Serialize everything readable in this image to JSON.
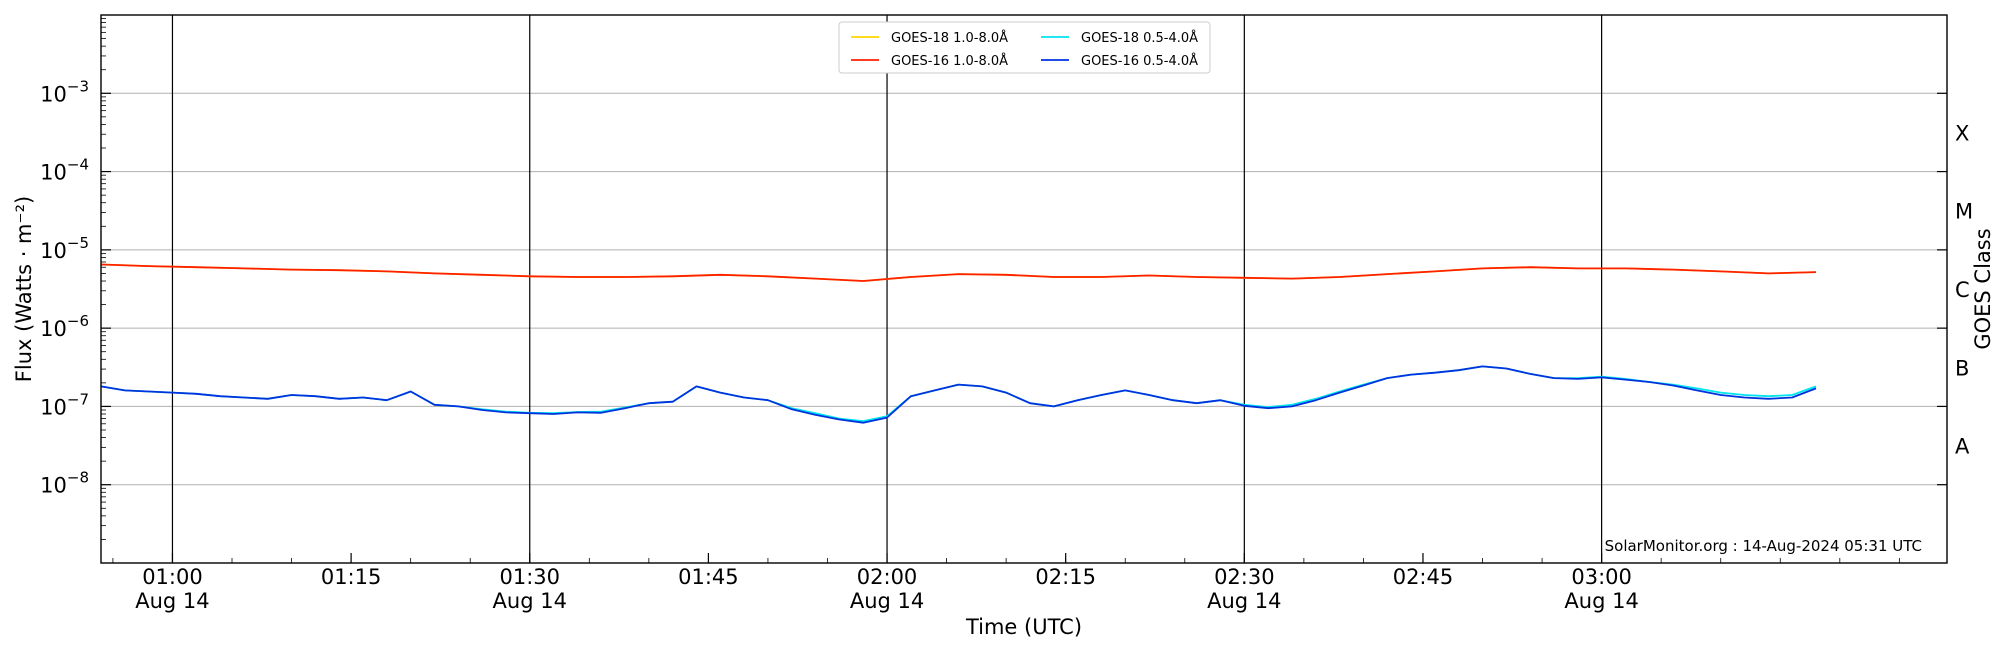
{
  "chart_data": {
    "type": "line",
    "title": "",
    "xlabel": "Time (UTC)",
    "ylabel": "Flux (Watts · m⁻²)",
    "y2label": "GOES Class",
    "yscale": "log",
    "xlim": [
      "00:54",
      "03:29"
    ],
    "ylim": [
      1e-09,
      0.01
    ],
    "grid": "horizontal at decades",
    "legend_position": "top-center",
    "x_ticks": [
      {
        "time": "01:00",
        "label": "01:00",
        "date": "Aug 14",
        "major": true
      },
      {
        "time": "01:15",
        "label": "01:15",
        "date": "",
        "major": false
      },
      {
        "time": "01:30",
        "label": "01:30",
        "date": "Aug 14",
        "major": true
      },
      {
        "time": "01:45",
        "label": "01:45",
        "date": "",
        "major": false
      },
      {
        "time": "02:00",
        "label": "02:00",
        "date": "Aug 14",
        "major": true
      },
      {
        "time": "02:15",
        "label": "02:15",
        "date": "",
        "major": false
      },
      {
        "time": "02:30",
        "label": "02:30",
        "date": "Aug 14",
        "major": true
      },
      {
        "time": "02:45",
        "label": "02:45",
        "date": "",
        "major": false
      },
      {
        "time": "03:00",
        "label": "03:00",
        "date": "Aug 14",
        "major": true
      }
    ],
    "y_ticks": [
      {
        "value": 0.001,
        "base": "10",
        "exp": "−3"
      },
      {
        "value": 0.0001,
        "base": "10",
        "exp": "−4"
      },
      {
        "value": 1e-05,
        "base": "10",
        "exp": "−5"
      },
      {
        "value": 1e-06,
        "base": "10",
        "exp": "−6"
      },
      {
        "value": 1e-07,
        "base": "10",
        "exp": "−7"
      },
      {
        "value": 1e-08,
        "base": "10",
        "exp": "−8"
      }
    ],
    "goes_classes": [
      {
        "label": "X",
        "flux": 0.0001
      },
      {
        "label": "M",
        "flux": 1e-05
      },
      {
        "label": "C",
        "flux": 1e-06
      },
      {
        "label": "B",
        "flux": 1e-07
      },
      {
        "label": "A",
        "flux": 1e-08
      }
    ],
    "series": [
      {
        "name": "GOES-18 1.0-8.0Å",
        "color": "#ffd700",
        "x": [
          "00:54",
          "00:58",
          "01:02",
          "01:06",
          "01:10",
          "01:14",
          "01:18",
          "01:22",
          "01:26",
          "01:30",
          "01:34",
          "01:38",
          "01:42",
          "01:46",
          "01:50",
          "01:54",
          "01:58",
          "02:02",
          "02:06",
          "02:10",
          "02:14",
          "02:18",
          "02:22",
          "02:26",
          "02:30",
          "02:34",
          "02:38",
          "02:42",
          "02:46",
          "02:50",
          "02:54",
          "02:58",
          "03:02",
          "03:06",
          "03:10",
          "03:14",
          "03:18"
        ],
        "y": [
          6.5e-06,
          6.2e-06,
          6e-06,
          5.8e-06,
          5.6e-06,
          5.5e-06,
          5.3e-06,
          5e-06,
          4.8e-06,
          4.6e-06,
          4.5e-06,
          4.5e-06,
          4.6e-06,
          4.8e-06,
          4.6e-06,
          4.3e-06,
          4e-06,
          4.5e-06,
          4.9e-06,
          4.8e-06,
          4.5e-06,
          4.5e-06,
          4.7e-06,
          4.5e-06,
          4.4e-06,
          4.3e-06,
          4.5e-06,
          4.9e-06,
          5.3e-06,
          5.8e-06,
          6e-06,
          5.8e-06,
          5.8e-06,
          5.6e-06,
          5.3e-06,
          5e-06,
          5.2e-06
        ]
      },
      {
        "name": "GOES-18 0.5-4.0Å",
        "color": "#00e5ee",
        "x": [
          "00:54",
          "00:56",
          "00:58",
          "01:00",
          "01:02",
          "01:04",
          "01:06",
          "01:08",
          "01:10",
          "01:12",
          "01:14",
          "01:16",
          "01:18",
          "01:20",
          "01:22",
          "01:24",
          "01:26",
          "01:28",
          "01:30",
          "01:32",
          "01:34",
          "01:36",
          "01:38",
          "01:40",
          "01:42",
          "01:44",
          "01:46",
          "01:48",
          "01:50",
          "01:52",
          "01:54",
          "01:56",
          "01:58",
          "02:00",
          "02:02",
          "02:04",
          "02:06",
          "02:08",
          "02:10",
          "02:12",
          "02:14",
          "02:16",
          "02:18",
          "02:20",
          "02:22",
          "02:24",
          "02:26",
          "02:28",
          "02:30",
          "02:32",
          "02:34",
          "02:36",
          "02:38",
          "02:40",
          "02:42",
          "02:44",
          "02:46",
          "02:48",
          "02:50",
          "02:52",
          "02:54",
          "02:56",
          "02:58",
          "03:00",
          "03:02",
          "03:04",
          "03:06",
          "03:08",
          "03:10",
          "03:12",
          "03:14",
          "03:16",
          "03:18"
        ],
        "y": [
          1.8e-07,
          1.6e-07,
          1.55e-07,
          1.5e-07,
          1.45e-07,
          1.35e-07,
          1.3e-07,
          1.25e-07,
          1.4e-07,
          1.35e-07,
          1.25e-07,
          1.3e-07,
          1.2e-07,
          1.55e-07,
          1.05e-07,
          1e-07,
          9.2e-08,
          8.6e-08,
          8.3e-08,
          8.2e-08,
          8.5e-08,
          8.6e-08,
          9.7e-08,
          1.1e-07,
          1.15e-07,
          1.8e-07,
          1.5e-07,
          1.3e-07,
          1.2e-07,
          9.5e-08,
          8.2e-08,
          7e-08,
          6.5e-08,
          7.5e-08,
          1.35e-07,
          1.6e-07,
          1.9e-07,
          1.8e-07,
          1.5e-07,
          1.1e-07,
          1e-07,
          1.2e-07,
          1.4e-07,
          1.6e-07,
          1.4e-07,
          1.2e-07,
          1.1e-07,
          1.2e-07,
          1.05e-07,
          9.8e-08,
          1.05e-07,
          1.25e-07,
          1.55e-07,
          1.9e-07,
          2.3e-07,
          2.55e-07,
          2.7e-07,
          2.9e-07,
          3.25e-07,
          3.05e-07,
          2.6e-07,
          2.3e-07,
          2.3e-07,
          2.4e-07,
          2.25e-07,
          2.05e-07,
          1.9e-07,
          1.7e-07,
          1.5e-07,
          1.4e-07,
          1.35e-07,
          1.4e-07,
          1.8e-07
        ]
      },
      {
        "name": "GOES-16 1.0-8.0Å",
        "color": "#ff2000",
        "x": [
          "00:54",
          "00:58",
          "01:02",
          "01:06",
          "01:10",
          "01:14",
          "01:18",
          "01:22",
          "01:26",
          "01:30",
          "01:34",
          "01:38",
          "01:42",
          "01:46",
          "01:50",
          "01:54",
          "01:58",
          "02:02",
          "02:06",
          "02:10",
          "02:14",
          "02:18",
          "02:22",
          "02:26",
          "02:30",
          "02:34",
          "02:38",
          "02:42",
          "02:46",
          "02:50",
          "02:54",
          "02:58",
          "03:02",
          "03:06",
          "03:10",
          "03:14",
          "03:18"
        ],
        "y": [
          6.5e-06,
          6.2e-06,
          6e-06,
          5.8e-06,
          5.6e-06,
          5.5e-06,
          5.3e-06,
          5e-06,
          4.8e-06,
          4.6e-06,
          4.5e-06,
          4.5e-06,
          4.6e-06,
          4.8e-06,
          4.6e-06,
          4.3e-06,
          4e-06,
          4.5e-06,
          4.9e-06,
          4.8e-06,
          4.5e-06,
          4.5e-06,
          4.7e-06,
          4.5e-06,
          4.4e-06,
          4.3e-06,
          4.5e-06,
          4.9e-06,
          5.3e-06,
          5.8e-06,
          6e-06,
          5.8e-06,
          5.8e-06,
          5.6e-06,
          5.3e-06,
          5e-06,
          5.2e-06
        ]
      },
      {
        "name": "GOES-16 0.5-4.0Å",
        "color": "#0033dd",
        "x": [
          "00:54",
          "00:56",
          "00:58",
          "01:00",
          "01:02",
          "01:04",
          "01:06",
          "01:08",
          "01:10",
          "01:12",
          "01:14",
          "01:16",
          "01:18",
          "01:20",
          "01:22",
          "01:24",
          "01:26",
          "01:28",
          "01:30",
          "01:32",
          "01:34",
          "01:36",
          "01:38",
          "01:40",
          "01:42",
          "01:44",
          "01:46",
          "01:48",
          "01:50",
          "01:52",
          "01:54",
          "01:56",
          "01:58",
          "02:00",
          "02:02",
          "02:04",
          "02:06",
          "02:08",
          "02:10",
          "02:12",
          "02:14",
          "02:16",
          "02:18",
          "02:20",
          "02:22",
          "02:24",
          "02:26",
          "02:28",
          "02:30",
          "02:32",
          "02:34",
          "02:36",
          "02:38",
          "02:40",
          "02:42",
          "02:44",
          "02:46",
          "02:48",
          "02:50",
          "02:52",
          "02:54",
          "02:56",
          "02:58",
          "03:00",
          "03:02",
          "03:04",
          "03:06",
          "03:08",
          "03:10",
          "03:12",
          "03:14",
          "03:16",
          "03:18"
        ],
        "y": [
          1.8e-07,
          1.6e-07,
          1.55e-07,
          1.5e-07,
          1.45e-07,
          1.35e-07,
          1.3e-07,
          1.25e-07,
          1.4e-07,
          1.35e-07,
          1.25e-07,
          1.3e-07,
          1.2e-07,
          1.55e-07,
          1.05e-07,
          1e-07,
          9e-08,
          8.4e-08,
          8.2e-08,
          8e-08,
          8.4e-08,
          8.3e-08,
          9.5e-08,
          1.1e-07,
          1.15e-07,
          1.8e-07,
          1.5e-07,
          1.3e-07,
          1.2e-07,
          9.2e-08,
          7.8e-08,
          6.8e-08,
          6.2e-08,
          7.2e-08,
          1.35e-07,
          1.6e-07,
          1.9e-07,
          1.8e-07,
          1.5e-07,
          1.1e-07,
          1e-07,
          1.2e-07,
          1.4e-07,
          1.6e-07,
          1.4e-07,
          1.2e-07,
          1.1e-07,
          1.2e-07,
          1.02e-07,
          9.5e-08,
          1e-07,
          1.2e-07,
          1.5e-07,
          1.85e-07,
          2.3e-07,
          2.55e-07,
          2.7e-07,
          2.9e-07,
          3.25e-07,
          3.05e-07,
          2.6e-07,
          2.3e-07,
          2.25e-07,
          2.35e-07,
          2.2e-07,
          2.05e-07,
          1.85e-07,
          1.6e-07,
          1.4e-07,
          1.3e-07,
          1.25e-07,
          1.3e-07,
          1.7e-07
        ]
      }
    ],
    "legend_order": [
      0,
      1,
      2,
      3
    ],
    "credit": "SolarMonitor.org : 14-Aug-2024 05:31 UTC"
  }
}
